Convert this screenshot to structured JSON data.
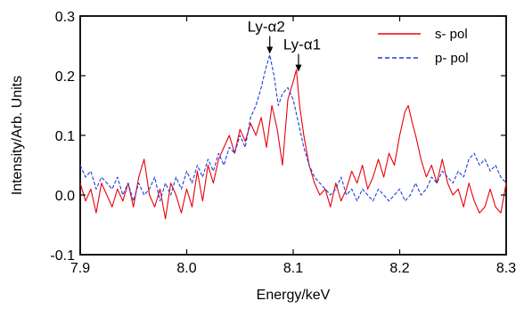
{
  "chart_data": {
    "type": "line",
    "xlabel": "Energy/keV",
    "ylabel": "Intensity/Arb. Units",
    "xlim": [
      7.9,
      8.3
    ],
    "ylim": [
      -0.1,
      0.3
    ],
    "x_ticks": [
      "7.9",
      "8.0",
      "8.1",
      "8.2",
      "8.3"
    ],
    "y_ticks": [
      "-0.1",
      "0.0",
      "0.1",
      "0.2",
      "0.3"
    ],
    "grid": false,
    "legend_position": "top-right",
    "annotations": [
      {
        "text": "Ly-α2",
        "x": 8.078,
        "y": 0.235
      },
      {
        "text": "Ly-α1",
        "x": 8.105,
        "y": 0.205
      }
    ],
    "series": [
      {
        "name": "s- pol",
        "color": "#e8000b",
        "style": "solid",
        "x": [
          7.9,
          7.905,
          7.91,
          7.915,
          7.92,
          7.925,
          7.93,
          7.935,
          7.94,
          7.945,
          7.95,
          7.955,
          7.96,
          7.965,
          7.97,
          7.975,
          7.98,
          7.985,
          7.99,
          7.995,
          8.0,
          8.005,
          8.01,
          8.015,
          8.02,
          8.025,
          8.03,
          8.035,
          8.04,
          8.045,
          8.05,
          8.055,
          8.06,
          8.065,
          8.07,
          8.075,
          8.08,
          8.085,
          8.09,
          8.095,
          8.1,
          8.103,
          8.106,
          8.11,
          8.115,
          8.12,
          8.125,
          8.13,
          8.135,
          8.14,
          8.145,
          8.15,
          8.155,
          8.16,
          8.165,
          8.17,
          8.175,
          8.18,
          8.185,
          8.19,
          8.195,
          8.2,
          8.205,
          8.208,
          8.212,
          8.215,
          8.22,
          8.225,
          8.23,
          8.235,
          8.24,
          8.245,
          8.25,
          8.255,
          8.26,
          8.265,
          8.27,
          8.275,
          8.28,
          8.285,
          8.29,
          8.295,
          8.3
        ],
        "y": [
          0.02,
          -0.01,
          0.01,
          -0.03,
          0.02,
          0.0,
          -0.02,
          0.01,
          -0.01,
          0.02,
          -0.02,
          0.03,
          0.06,
          0.0,
          -0.02,
          0.01,
          -0.04,
          0.02,
          0.0,
          -0.03,
          0.01,
          -0.02,
          0.04,
          -0.01,
          0.05,
          0.02,
          0.06,
          0.08,
          0.1,
          0.07,
          0.11,
          0.09,
          0.12,
          0.1,
          0.13,
          0.08,
          0.15,
          0.11,
          0.05,
          0.16,
          0.19,
          0.21,
          0.15,
          0.1,
          0.05,
          0.02,
          0.0,
          0.01,
          -0.02,
          0.02,
          -0.01,
          0.01,
          0.04,
          0.02,
          0.05,
          0.01,
          0.03,
          0.06,
          0.03,
          0.07,
          0.05,
          0.1,
          0.14,
          0.15,
          0.12,
          0.1,
          0.06,
          0.03,
          0.05,
          0.02,
          0.06,
          0.02,
          0.0,
          0.01,
          -0.02,
          0.02,
          -0.01,
          -0.03,
          -0.02,
          0.01,
          -0.02,
          -0.03,
          0.02
        ]
      },
      {
        "name": "p- pol",
        "color": "#1f3fd8",
        "style": "dashed",
        "x": [
          7.9,
          7.905,
          7.91,
          7.915,
          7.92,
          7.925,
          7.93,
          7.935,
          7.94,
          7.945,
          7.95,
          7.955,
          7.96,
          7.965,
          7.97,
          7.975,
          7.98,
          7.985,
          7.99,
          7.995,
          8.0,
          8.005,
          8.01,
          8.015,
          8.02,
          8.025,
          8.03,
          8.035,
          8.04,
          8.045,
          8.05,
          8.055,
          8.06,
          8.065,
          8.07,
          8.074,
          8.078,
          8.082,
          8.086,
          8.09,
          8.095,
          8.1,
          8.105,
          8.11,
          8.115,
          8.12,
          8.125,
          8.13,
          8.135,
          8.14,
          8.145,
          8.15,
          8.155,
          8.16,
          8.165,
          8.17,
          8.175,
          8.18,
          8.185,
          8.19,
          8.195,
          8.2,
          8.205,
          8.21,
          8.215,
          8.22,
          8.225,
          8.23,
          8.235,
          8.24,
          8.245,
          8.25,
          8.255,
          8.26,
          8.265,
          8.27,
          8.275,
          8.28,
          8.285,
          8.29,
          8.295,
          8.3
        ],
        "y": [
          0.05,
          0.03,
          0.04,
          0.01,
          0.03,
          0.02,
          0.01,
          0.03,
          0.0,
          0.02,
          -0.01,
          0.02,
          0.0,
          0.01,
          0.03,
          -0.01,
          0.02,
          0.0,
          0.03,
          0.01,
          0.04,
          0.02,
          0.05,
          0.03,
          0.06,
          0.04,
          0.07,
          0.05,
          0.08,
          0.07,
          0.1,
          0.08,
          0.13,
          0.15,
          0.18,
          0.21,
          0.235,
          0.2,
          0.15,
          0.17,
          0.18,
          0.16,
          0.12,
          0.08,
          0.05,
          0.03,
          0.02,
          0.01,
          0.0,
          0.01,
          0.03,
          0.0,
          0.01,
          -0.01,
          0.01,
          0.0,
          -0.01,
          0.01,
          0.0,
          -0.01,
          0.0,
          0.01,
          -0.01,
          0.0,
          0.02,
          0.0,
          0.01,
          0.03,
          0.02,
          0.04,
          0.03,
          0.02,
          0.04,
          0.03,
          0.06,
          0.07,
          0.05,
          0.06,
          0.04,
          0.05,
          0.03,
          0.02
        ]
      }
    ]
  }
}
